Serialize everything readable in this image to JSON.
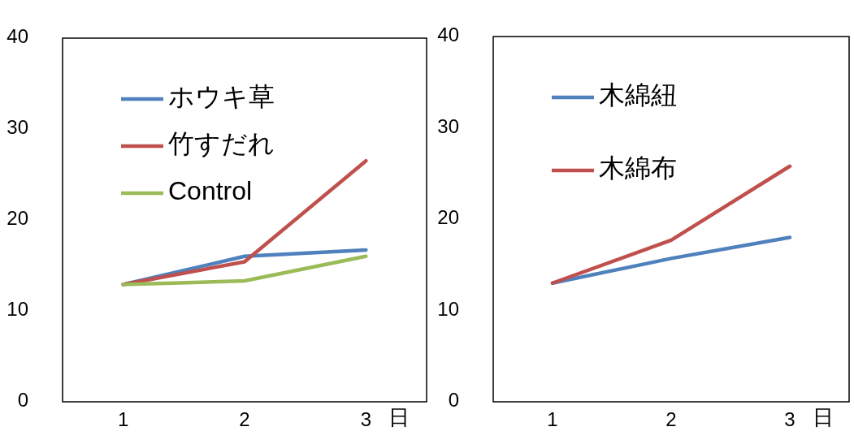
{
  "chart_data": [
    {
      "type": "line",
      "categories": [
        "1",
        "2",
        "3"
      ],
      "xlabel": "日",
      "ylim": [
        0,
        40
      ],
      "yticks": [
        0,
        10,
        20,
        30,
        40
      ],
      "grid": false,
      "legend": "top left",
      "series": [
        {
          "name": "ホウキ草",
          "color": "#4f81bd",
          "values": [
            12.9,
            16.0,
            16.7
          ]
        },
        {
          "name": "竹すだれ",
          "color": "#c0504d",
          "values": [
            12.9,
            15.4,
            26.5
          ]
        },
        {
          "name": "Control",
          "color": "#9bbb59",
          "values": [
            12.9,
            13.3,
            16.0
          ]
        }
      ]
    },
    {
      "type": "line",
      "categories": [
        "1",
        "2",
        "3"
      ],
      "xlabel": "日",
      "ylim": [
        0,
        40
      ],
      "yticks": [
        0,
        10,
        20,
        30,
        40
      ],
      "grid": false,
      "legend": "top left",
      "series": [
        {
          "name": "木綿紐",
          "color": "#4f81bd",
          "values": [
            13.0,
            15.7,
            18.0
          ]
        },
        {
          "name": "木綿布",
          "color": "#c0504d",
          "values": [
            13.0,
            17.7,
            25.8
          ]
        }
      ]
    }
  ]
}
